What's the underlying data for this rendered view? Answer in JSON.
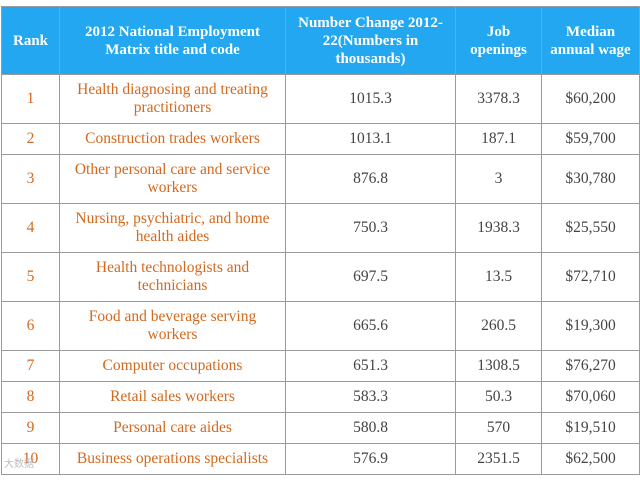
{
  "headers": {
    "rank": "Rank",
    "title": "2012 National Employment Matrix title and code",
    "change": "Number Change 2012-22(Numbers in thousands)",
    "openings": "Job openings",
    "wage": "Median annual wage"
  },
  "rows": [
    {
      "rank": "1",
      "title": "Health diagnosing and treating practitioners",
      "change": "1015.3",
      "openings": "3378.3",
      "wage": "$60,200"
    },
    {
      "rank": "2",
      "title": "Construction trades workers",
      "change": "1013.1",
      "openings": "187.1",
      "wage": "$59,700"
    },
    {
      "rank": "3",
      "title": "Other personal care and service workers",
      "change": "876.8",
      "openings": "3",
      "wage": "$30,780"
    },
    {
      "rank": "4",
      "title": "Nursing, psychiatric, and home health aides",
      "change": "750.3",
      "openings": "1938.3",
      "wage": "$25,550"
    },
    {
      "rank": "5",
      "title": "Health technologists and technicians",
      "change": "697.5",
      "openings": "13.5",
      "wage": "$72,710"
    },
    {
      "rank": "6",
      "title": "Food and beverage serving workers",
      "change": "665.6",
      "openings": "260.5",
      "wage": "$19,300"
    },
    {
      "rank": "7",
      "title": "Computer occupations",
      "change": "651.3",
      "openings": "1308.5",
      "wage": "$76,270"
    },
    {
      "rank": "8",
      "title": "Retail sales workers",
      "change": "583.3",
      "openings": "50.3",
      "wage": "$70,060"
    },
    {
      "rank": "9",
      "title": "Personal care aides",
      "change": "580.8",
      "openings": "570",
      "wage": "$19,510"
    },
    {
      "rank": "10",
      "title": "Business operations specialists",
      "change": "576.9",
      "openings": "2351.5",
      "wage": "$62,500"
    }
  ],
  "watermark": "大数据",
  "colors": {
    "header_bg": "#22a7f0",
    "header_text": "#ffffff",
    "title_text": "#d2691e",
    "number_text": "#444444",
    "border": "#9a9a9a"
  }
}
